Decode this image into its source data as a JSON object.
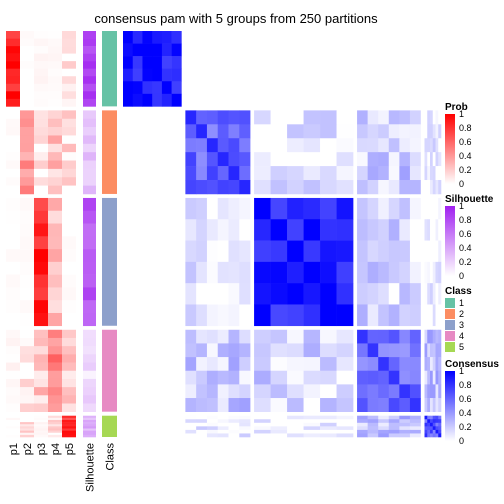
{
  "chart_data": {
    "type": "heatmap",
    "title": "consensus pam with 5 groups from 250 partitions",
    "annotation_columns": [
      "p1",
      "p2",
      "p3",
      "p4",
      "p5",
      "Silhouette",
      "Class"
    ],
    "classes": [
      "1",
      "2",
      "3",
      "4",
      "5"
    ],
    "class_colors": [
      "#66C2A5",
      "#FC8D62",
      "#8DA0CB",
      "#E78AC3",
      "#A6D854"
    ],
    "class_row_fractions": [
      0.23,
      0.255,
      0.39,
      0.25,
      0.065
    ],
    "mean_membership_by_class": [
      [
        0.88,
        0.0,
        0.02,
        0.02,
        0.08
      ],
      [
        0.0,
        0.4,
        0.08,
        0.25,
        0.12
      ],
      [
        0.0,
        0.0,
        0.85,
        0.22,
        0.0
      ],
      [
        0.03,
        0.06,
        0.2,
        0.5,
        0.2
      ],
      [
        0.0,
        0.12,
        0.02,
        0.1,
        0.82
      ]
    ],
    "mean_silhouette_by_class": [
      0.85,
      0.25,
      0.75,
      0.15,
      0.35
    ],
    "mean_consensus_within_class": [
      0.92,
      0.6,
      0.88,
      0.55,
      0.65
    ],
    "legends": [
      {
        "title": "Prob",
        "ticks": [
          "1",
          "0.8",
          "0.6",
          "0.4",
          "0.2",
          "0"
        ],
        "low": "#FFFFFF",
        "high": "#FF0000"
      },
      {
        "title": "Silhouette",
        "ticks": [
          "1",
          "0.8",
          "0.6",
          "0.4",
          "0.2",
          "0"
        ],
        "low": "#FFFFFF",
        "high": "#A020F0"
      },
      {
        "title": "Class",
        "ticks": [
          "1",
          "2",
          "3",
          "4",
          "5"
        ]
      },
      {
        "title": "Consensus",
        "ticks": [
          "1",
          "0.8",
          "0.6",
          "0.4",
          "0.2",
          "0"
        ],
        "low": "#FFFFFF",
        "high": "#0000FF"
      }
    ]
  }
}
